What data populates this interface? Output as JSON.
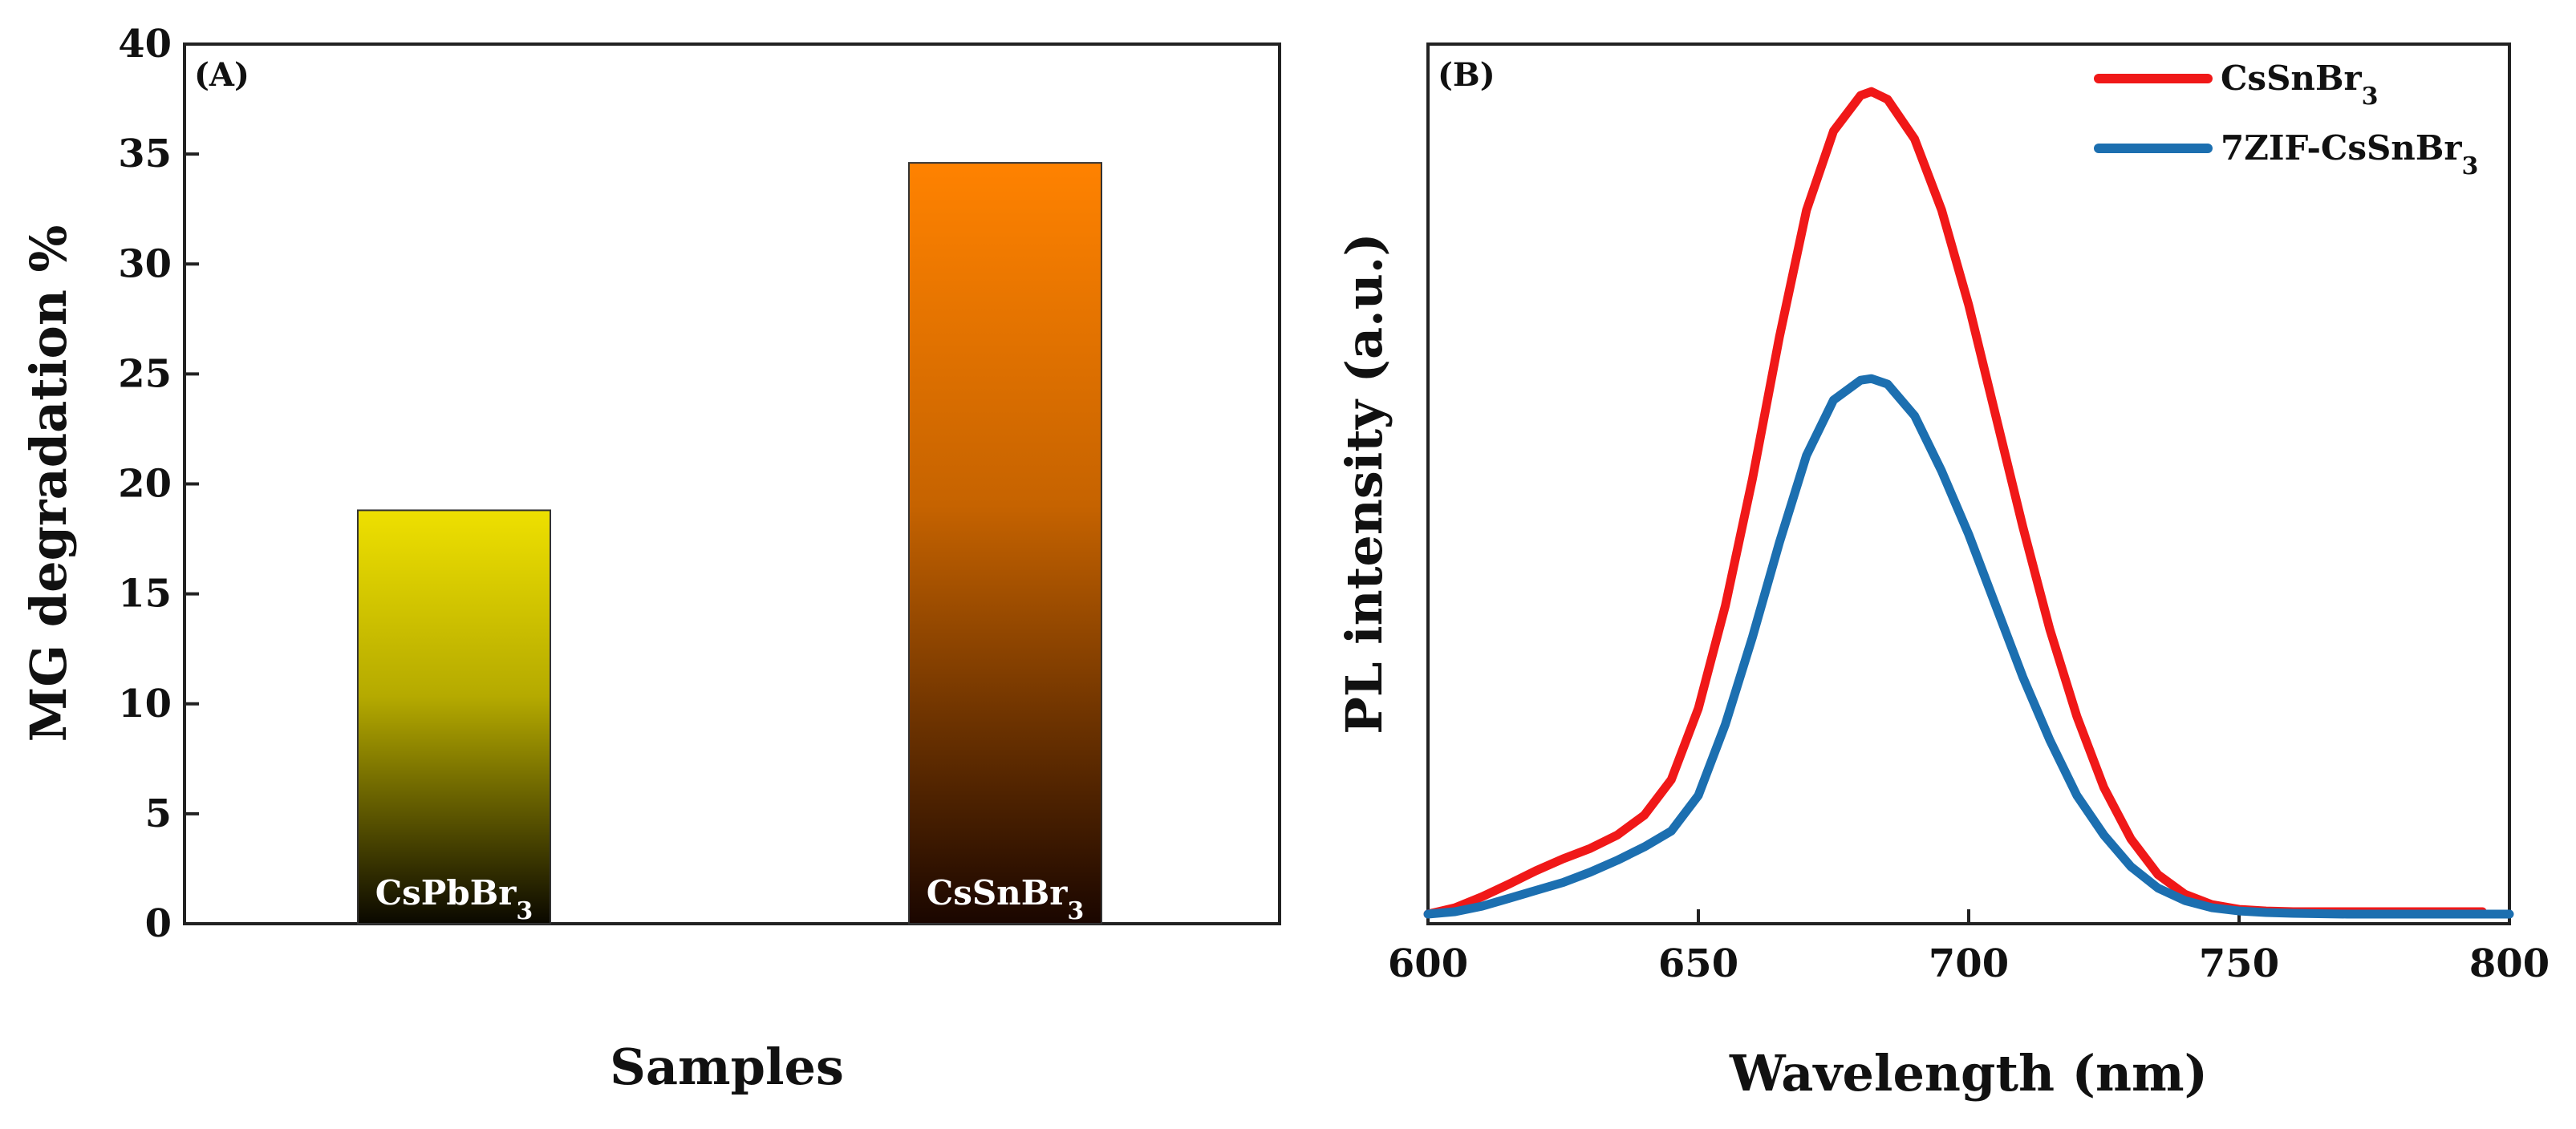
{
  "chart_data": [
    {
      "type": "bar",
      "panel_label": "(A)",
      "categories": [
        "CsPbBr3",
        "CsSnBr3"
      ],
      "category_labels": [
        {
          "base": "CsPbBr",
          "sub": "3"
        },
        {
          "base": "CsSnBr",
          "sub": "3"
        }
      ],
      "values": [
        18.8,
        34.6
      ],
      "bar_colors": [
        {
          "top": "#eee000",
          "bottom": "#0a0800"
        },
        {
          "top": "#ff8200",
          "bottom": "#1a0600"
        }
      ],
      "xlabel": "Samples",
      "ylabel": "MG degradation %",
      "ylim": [
        0,
        40
      ],
      "yticks": [
        "0",
        "5",
        "10",
        "15",
        "20",
        "25",
        "30",
        "35",
        "40"
      ]
    },
    {
      "type": "line",
      "panel_label": "(B)",
      "xlabel": "Wavelength (nm)",
      "ylabel": "PL intensity (a.u.)",
      "xlim": [
        600,
        800
      ],
      "ylim": [
        0,
        1.1
      ],
      "xticks": [
        "600",
        "650",
        "700",
        "750",
        "800"
      ],
      "legend_position": "top-right",
      "series": [
        {
          "name": "CsSnBr3",
          "name_base": "CsSnBr",
          "name_sub": "3",
          "color": "#f01818",
          "x": [
            600,
            605,
            610,
            615,
            620,
            625,
            630,
            635,
            640,
            645,
            650,
            655,
            660,
            665,
            670,
            675,
            680,
            682,
            685,
            690,
            695,
            700,
            705,
            710,
            715,
            720,
            725,
            730,
            735,
            740,
            745,
            750,
            755,
            760,
            770,
            780,
            790,
            795
          ],
          "y": [
            0.0,
            0.008,
            0.022,
            0.038,
            0.055,
            0.07,
            0.083,
            0.1,
            0.125,
            0.17,
            0.26,
            0.39,
            0.55,
            0.73,
            0.89,
            0.99,
            1.035,
            1.04,
            1.03,
            0.98,
            0.89,
            0.77,
            0.63,
            0.49,
            0.36,
            0.25,
            0.16,
            0.095,
            0.05,
            0.025,
            0.012,
            0.006,
            0.004,
            0.003,
            0.003,
            0.003,
            0.003,
            0.003
          ]
        },
        {
          "name": "7ZIF-CsSnBr3",
          "name_base": "7ZIF-CsSnBr",
          "name_sub": "3",
          "color": "#1c6fb0",
          "x": [
            600,
            605,
            610,
            615,
            620,
            625,
            630,
            635,
            640,
            645,
            650,
            655,
            660,
            665,
            670,
            675,
            680,
            682,
            685,
            690,
            695,
            700,
            705,
            710,
            715,
            720,
            725,
            730,
            735,
            740,
            745,
            750,
            755,
            760,
            770,
            780,
            790,
            800
          ],
          "y": [
            0.0,
            0.003,
            0.01,
            0.02,
            0.03,
            0.04,
            0.053,
            0.068,
            0.085,
            0.105,
            0.15,
            0.24,
            0.35,
            0.47,
            0.58,
            0.65,
            0.675,
            0.677,
            0.67,
            0.63,
            0.56,
            0.48,
            0.39,
            0.3,
            0.22,
            0.15,
            0.1,
            0.06,
            0.033,
            0.017,
            0.008,
            0.004,
            0.002,
            0.001,
            0.0,
            0.0,
            0.0,
            0.0
          ]
        }
      ]
    }
  ]
}
